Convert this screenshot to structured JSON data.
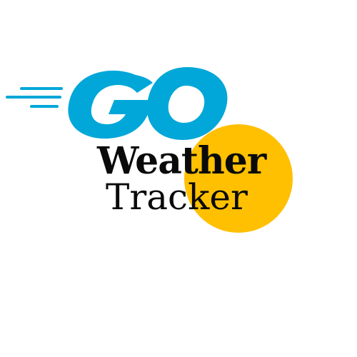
{
  "logo": {
    "mark_text": "GO",
    "mark_color": "#00A7D8",
    "sun_color": "#FFC002",
    "speed_lines_color": "#00A7D8",
    "title_line_1": "Weather",
    "title_line_2": "Tracker",
    "title_color": "#0A0A0A",
    "background": "#FFFFFF"
  }
}
